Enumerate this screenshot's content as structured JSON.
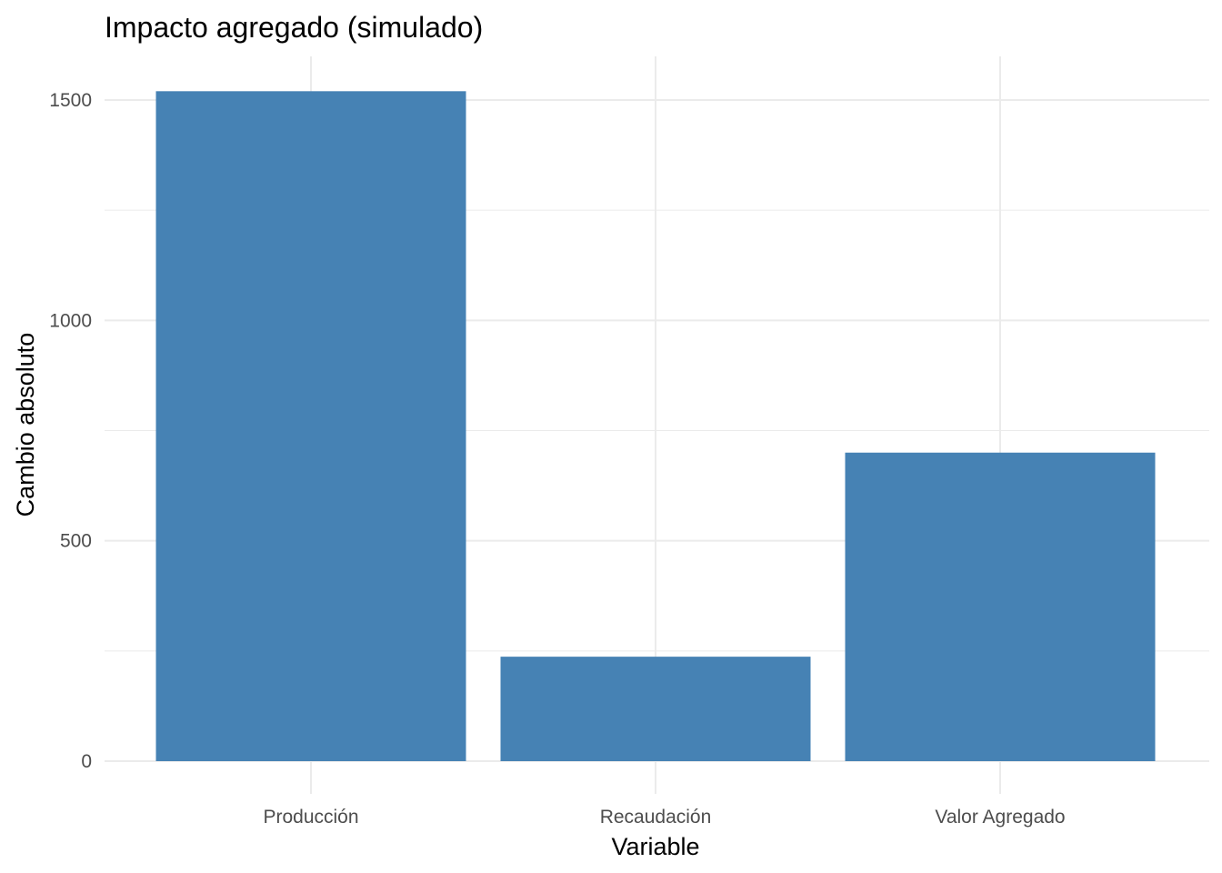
{
  "chart_data": {
    "type": "bar",
    "title": "Impacto agregado (simulado)",
    "xlabel": "Variable",
    "ylabel": "Cambio absoluto",
    "categories": [
      "Producción",
      "Recaudación",
      "Valor Agregado"
    ],
    "values": [
      1520,
      237,
      700
    ],
    "ylim": [
      0,
      1600
    ],
    "yticks": [
      0,
      500,
      1000,
      1500
    ],
    "ytick_labels": [
      "0",
      "500",
      "1000",
      "1500"
    ],
    "grid": true,
    "legend": "none",
    "bar_color": "#4682b4"
  }
}
